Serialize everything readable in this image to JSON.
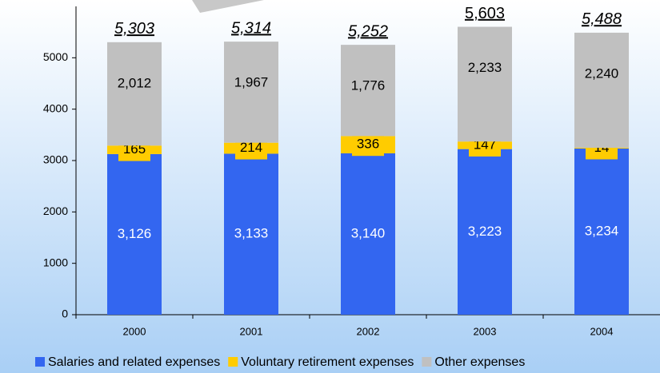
{
  "chart_data": {
    "type": "stacked_bar",
    "categories": [
      "2000",
      "2001",
      "2002",
      "2003",
      "2004"
    ],
    "series": [
      {
        "name": "Salaries and related expenses",
        "color": "#3366f0",
        "values": [
          3126,
          3133,
          3140,
          3223,
          3234
        ],
        "value_labels": [
          "3,126",
          "3,133",
          "3,140",
          "3,223",
          "3,234"
        ]
      },
      {
        "name": "Voluntary retirement expenses",
        "color": "#ffcc00",
        "values": [
          165,
          214,
          336,
          147,
          14
        ]
      },
      {
        "name": "Other expenses",
        "color": "#c0c0c0",
        "values": [
          2012,
          1967,
          1776,
          2233,
          2240
        ],
        "value_labels": [
          "2,012",
          "1,967",
          "1,776",
          "2,233",
          "2,240"
        ]
      }
    ],
    "totals": [
      5303,
      5314,
      5252,
      5603,
      5488
    ],
    "total_labels": [
      "5,303",
      "5,314",
      "5,252",
      "5,603",
      "5,488"
    ],
    "ylim": [
      0,
      6000
    ],
    "yticks": [
      0,
      1000,
      2000,
      3000,
      4000,
      5000
    ],
    "legend": "bottom"
  }
}
